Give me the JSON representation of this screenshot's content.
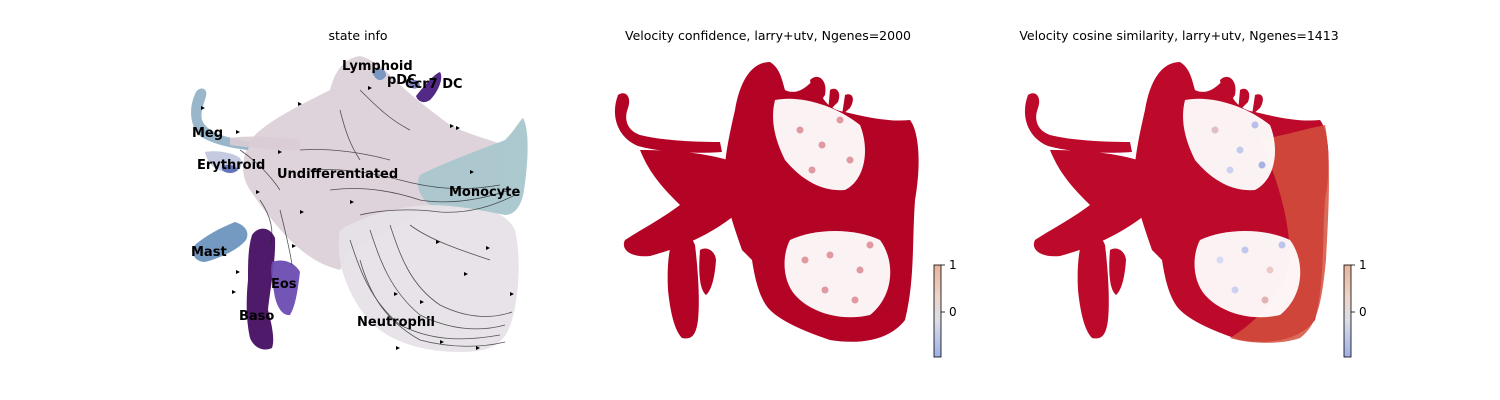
{
  "chart_data": [
    {
      "type": "scatter",
      "title": "state info",
      "series": [
        {
          "name": "Undifferentiated",
          "color": "#d9ccd4"
        },
        {
          "name": "Monocyte",
          "color": "#a7c4cc"
        },
        {
          "name": "Neutrophil",
          "color": "#e4dfe6"
        },
        {
          "name": "Meg",
          "color": "#8fb0c6"
        },
        {
          "name": "Erythroid",
          "color": "#5e6fb8"
        },
        {
          "name": "Mast",
          "color": "#6b93be"
        },
        {
          "name": "Baso",
          "color": "#4a1466"
        },
        {
          "name": "Eos",
          "color": "#6a4bb0"
        },
        {
          "name": "Lymphoid",
          "color": "#6e8fbe"
        },
        {
          "name": "pDC",
          "color": "#3d2a8a"
        },
        {
          "name": "Ccr7_DC",
          "color": "#4a1e80"
        }
      ],
      "labels": [
        "Lymphoid",
        "pDC",
        "Ccr7_DC",
        "Meg",
        "Erythroid",
        "Undifferentiated",
        "Monocyte",
        "Mast",
        "Eos",
        "Baso",
        "Neutrophil"
      ],
      "overlay": "velocity streamlines"
    },
    {
      "type": "scatter",
      "title": "Velocity confidence, larry+utv, Ngenes=2000",
      "colormap": "coolwarm",
      "colorbar_ticks": [
        "1",
        "0"
      ],
      "point_color": "#b40426"
    },
    {
      "type": "scatter",
      "title": "Velocity cosine similarity, larry+utv, Ngenes=1413",
      "colormap": "coolwarm",
      "colorbar_ticks": [
        "1",
        "0"
      ],
      "point_color": "#c0282c"
    }
  ]
}
